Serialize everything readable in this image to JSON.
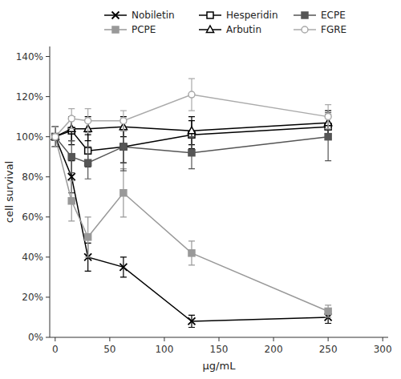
{
  "chart_data": {
    "type": "line",
    "xlabel": "μg/mL",
    "ylabel": "cell survival",
    "x": [
      0,
      15,
      30,
      62.5,
      125,
      250
    ],
    "series": [
      {
        "name": "Nobiletin",
        "color": "#000000",
        "marker": "x",
        "line_style": "solid",
        "values": [
          100,
          80,
          40,
          35,
          8,
          10
        ],
        "errors": [
          5,
          8,
          7,
          5,
          3,
          3
        ]
      },
      {
        "name": "PCPE",
        "color": "#999999",
        "marker": "square",
        "line_style": "solid",
        "values": [
          100,
          68,
          50,
          72,
          42,
          13
        ],
        "errors": [
          5,
          10,
          10,
          12,
          6,
          3
        ]
      },
      {
        "name": "Hesperidin",
        "color": "#000000",
        "marker": "square-open",
        "line_style": "solid",
        "values": [
          100,
          103,
          93,
          95,
          101,
          105
        ],
        "errors": [
          5,
          7,
          8,
          8,
          7,
          6
        ]
      },
      {
        "name": "Arbutin",
        "color": "#000000",
        "marker": "triangle-open",
        "line_style": "solid",
        "values": [
          100,
          104,
          104,
          105,
          103,
          107
        ],
        "errors": [
          5,
          6,
          6,
          5,
          7,
          6
        ]
      },
      {
        "name": "ECPE",
        "color": "#555555",
        "marker": "square",
        "line_style": "solid",
        "values": [
          100,
          90,
          87,
          95,
          92,
          100
        ],
        "errors": [
          5,
          8,
          8,
          12,
          8,
          12
        ]
      },
      {
        "name": "FGRE",
        "color": "#aaaaaa",
        "marker": "circle-open",
        "line_style": "solid",
        "values": [
          100,
          109,
          108,
          108,
          121,
          110
        ],
        "errors": [
          5,
          5,
          6,
          5,
          8,
          6
        ]
      }
    ],
    "xlim": [
      -5,
      305
    ],
    "xticks": [
      0,
      50,
      100,
      150,
      200,
      250,
      300
    ],
    "ylim": [
      0,
      145
    ],
    "yticks": [
      {
        "value": 0,
        "label": "0%"
      },
      {
        "value": 20,
        "label": "20%"
      },
      {
        "value": 40,
        "label": "40%"
      },
      {
        "value": 60,
        "label": "60%"
      },
      {
        "value": 80,
        "label": "80%"
      },
      {
        "value": 100,
        "label": "100%"
      },
      {
        "value": 120,
        "label": "120%"
      },
      {
        "value": 140,
        "label": "140%"
      }
    ],
    "grid": false,
    "legend": "upper right"
  }
}
